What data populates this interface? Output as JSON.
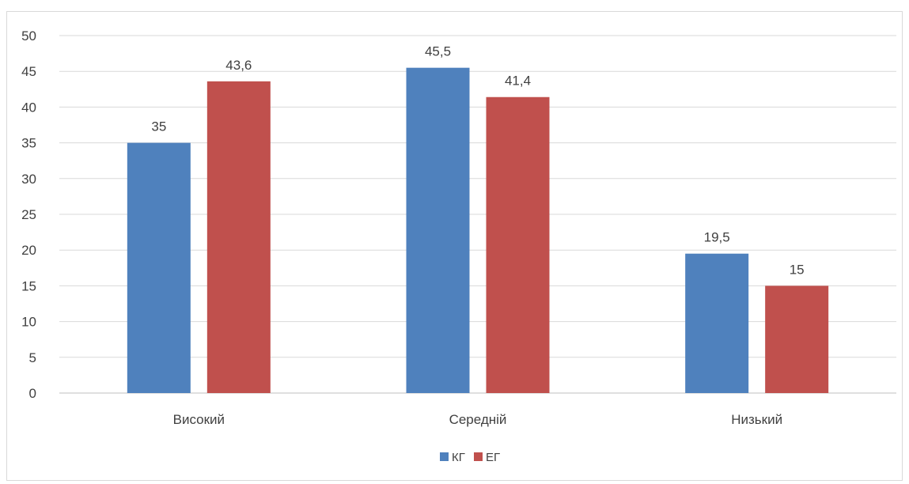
{
  "chart_data": {
    "type": "bar",
    "title": "",
    "xlabel": "",
    "ylabel": "",
    "categories": [
      "Високий",
      "Середній",
      "Низький"
    ],
    "series": [
      {
        "name": "КГ",
        "values": [
          35,
          45.5,
          19.5
        ],
        "color": "#4f81bd"
      },
      {
        "name": "ЕГ",
        "values": [
          43.6,
          41.4,
          15
        ],
        "color": "#c0504d"
      }
    ],
    "ylim": [
      0,
      50
    ],
    "yticks": [
      0,
      5,
      10,
      15,
      20,
      25,
      30,
      35,
      40,
      45,
      50
    ],
    "grid": true,
    "legend_position": "bottom",
    "data_labels": true,
    "decimal_separator": ","
  }
}
